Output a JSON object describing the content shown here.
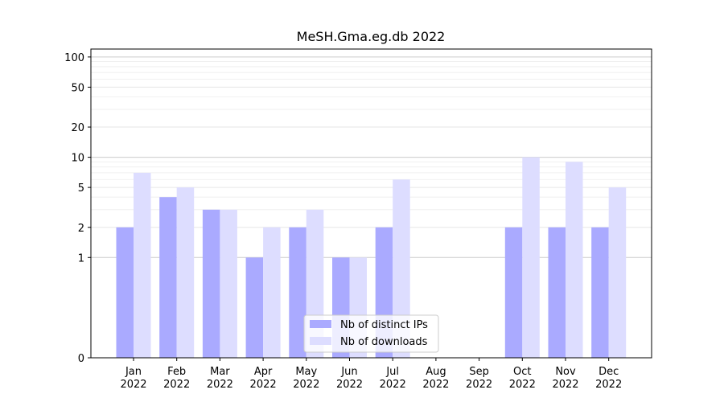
{
  "chart_data": {
    "type": "bar",
    "title": "MeSH.Gma.eg.db 2022",
    "xlabel": "",
    "ylabel": "",
    "categories": [
      [
        "Jan",
        "2022"
      ],
      [
        "Feb",
        "2022"
      ],
      [
        "Mar",
        "2022"
      ],
      [
        "Apr",
        "2022"
      ],
      [
        "May",
        "2022"
      ],
      [
        "Jun",
        "2022"
      ],
      [
        "Jul",
        "2022"
      ],
      [
        "Aug",
        "2022"
      ],
      [
        "Sep",
        "2022"
      ],
      [
        "Oct",
        "2022"
      ],
      [
        "Nov",
        "2022"
      ],
      [
        "Dec",
        "2022"
      ]
    ],
    "series": [
      {
        "name": "Nb of distinct IPs",
        "color": "#aaaaff",
        "values": [
          2,
          4,
          3,
          1,
          2,
          1,
          2,
          0,
          0,
          2,
          2,
          2
        ]
      },
      {
        "name": "Nb of downloads",
        "color": "#ddddff",
        "values": [
          7,
          5,
          3,
          2,
          3,
          1,
          6,
          0,
          0,
          10,
          9,
          5
        ]
      }
    ],
    "y_scale": "symlog",
    "y_ticks": [
      0,
      1,
      2,
      5,
      10,
      20,
      50,
      100
    ],
    "ylim": [
      0,
      120
    ],
    "grid": true,
    "legend_position": "bottom-center"
  }
}
